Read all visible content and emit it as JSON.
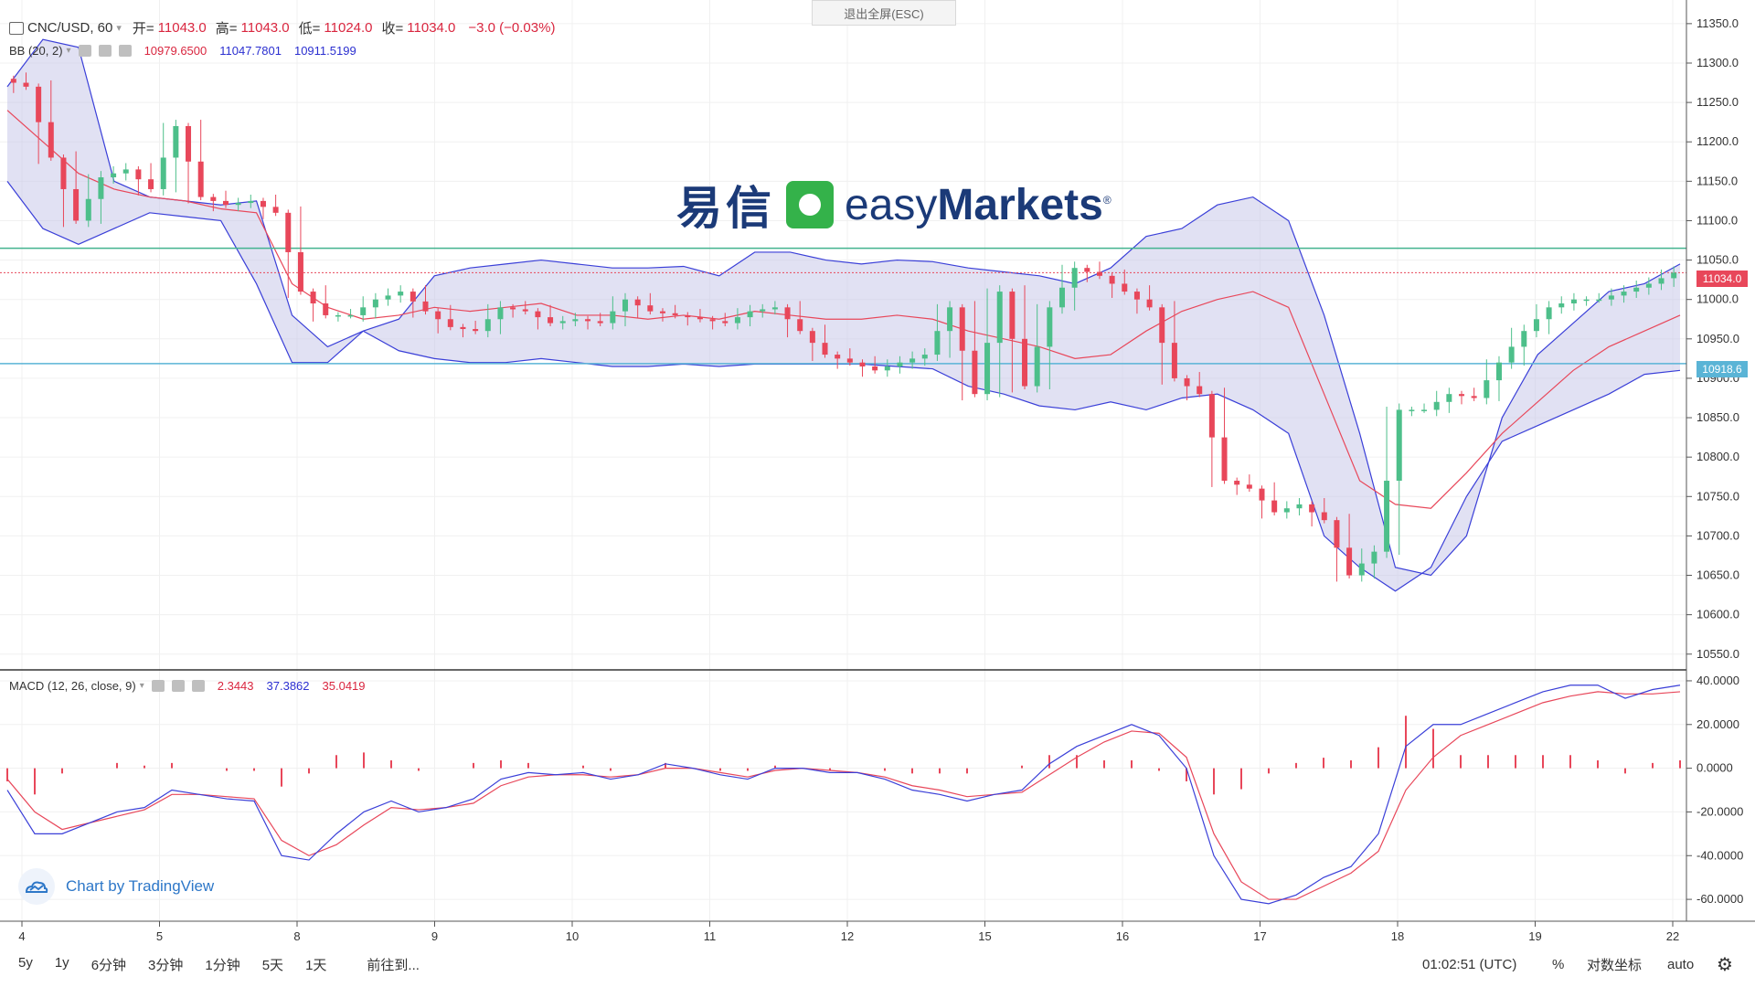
{
  "header": {
    "symbol": "CNC/USD, 60",
    "open_label": "开=",
    "open_value": "11043.0",
    "high_label": "高=",
    "high_value": "11043.0",
    "low_label": "低=",
    "low_value": "11024.0",
    "close_label": "收=",
    "close_value": "11034.0",
    "change": "−3.0 (−0.03%)",
    "exit_fullscreen": "退出全屏(ESC)"
  },
  "bb_legend": {
    "name": "BB (20, 2)",
    "basis": "10979.6500",
    "upper": "11047.7801",
    "lower": "10911.5199"
  },
  "macd_legend": {
    "name": "MACD (12, 26, close, 9)",
    "histogram": "2.3443",
    "macd": "37.3862",
    "signal": "35.0419"
  },
  "watermark": {
    "cn": "易信",
    "en_light": "easy",
    "en_bold": "Markets",
    "reg": "®"
  },
  "tradingview_badge": "Chart by TradingView",
  "price_tags": {
    "current": "11034.0",
    "line": "10918.6"
  },
  "price_axis": [
    "11350.0",
    "11300.0",
    "11250.0",
    "11200.0",
    "11150.0",
    "11100.0",
    "11050.0",
    "11000.0",
    "10950.0",
    "10900.0",
    "10850.0",
    "10800.0",
    "10750.0",
    "10700.0",
    "10650.0",
    "10600.0",
    "10550.0"
  ],
  "macd_axis": [
    "40.0000",
    "20.0000",
    "0.0000",
    "-20.0000",
    "-40.0000",
    "-60.0000"
  ],
  "time_axis": [
    "4",
    "5",
    "8",
    "9",
    "10",
    "11",
    "12",
    "15",
    "16",
    "17",
    "18",
    "19",
    "22"
  ],
  "toolbar": {
    "ranges": [
      "5y",
      "1y",
      "6分钟",
      "3分钟",
      "1分钟",
      "5天",
      "1天"
    ],
    "goto": "前往到...",
    "clock": "01:02:51 (UTC)",
    "percent": "%",
    "log": "对数坐标",
    "auto": "auto"
  },
  "colors": {
    "up": "#26a69a",
    "up_fill": "#4dbf8a",
    "down": "#e8475a",
    "bb_band": "#3a3fd8",
    "bb_basis": "#e8475a",
    "bb_fill": "#c9c8ea",
    "hline_green": "#42b38f",
    "hline_blue": "#5ab4d6",
    "macd_line": "#3a3fd8",
    "signal_line": "#e8475a",
    "hist": "#e8475a"
  },
  "chart_data": {
    "type": "candlestick",
    "ylim": [
      10530,
      11380
    ],
    "macd_ylim": [
      -70,
      45
    ],
    "hlines": [
      11065,
      10918.6,
      11034
    ],
    "bb_upper": [
      11270,
      11330,
      11320,
      11150,
      11130,
      11125,
      11120,
      11125,
      10980,
      10940,
      10960,
      10975,
      11030,
      11040,
      11045,
      11050,
      11045,
      11040,
      11040,
      11042,
      11030,
      11060,
      11060,
      11050,
      11045,
      11050,
      11048,
      11040,
      11035,
      11030,
      11020,
      11040,
      11080,
      11090,
      11120,
      11130,
      11100,
      10980,
      10830,
      10660,
      10650,
      10700,
      10850,
      10930,
      10970,
      11010,
      11020,
      11045
    ],
    "bb_basis": [
      11240,
      11200,
      11160,
      11140,
      11130,
      11125,
      11115,
      11110,
      11020,
      10990,
      10975,
      10980,
      10990,
      10985,
      10990,
      10995,
      10980,
      10980,
      10975,
      10980,
      10975,
      10985,
      10980,
      10975,
      10975,
      10980,
      10975,
      10960,
      10950,
      10940,
      10925,
      10930,
      10960,
      10985,
      11000,
      11010,
      10990,
      10880,
      10770,
      10740,
      10735,
      10780,
      10830,
      10870,
      10910,
      10940,
      10960,
      10980
    ],
    "bb_lower": [
      11150,
      11090,
      11070,
      11090,
      11110,
      11105,
      11100,
      11020,
      10920,
      10920,
      10960,
      10935,
      10925,
      10920,
      10920,
      10925,
      10920,
      10915,
      10915,
      10918,
      10915,
      10918,
      10918,
      10918,
      10918,
      10915,
      10912,
      10890,
      10880,
      10865,
      10860,
      10870,
      10860,
      10875,
      10880,
      10860,
      10830,
      10700,
      10660,
      10630,
      10660,
      10750,
      10820,
      10840,
      10860,
      10880,
      10905,
      10910
    ],
    "closes": [
      11270,
      11180,
      11100,
      11155,
      11165,
      11140,
      11220,
      11130,
      11120,
      11125,
      11110,
      11010,
      10980,
      10980,
      11000,
      11010,
      10985,
      10965,
      10960,
      10990,
      10985,
      10970,
      10975,
      10970,
      11000,
      10985,
      10980,
      10975,
      10970,
      10985,
      10990,
      10960,
      10930,
      10920,
      10910,
      10920,
      10930,
      10990,
      10880,
      11010,
      10890,
      10990,
      11040,
      11030,
      11010,
      10990,
      10900,
      10880,
      10770,
      10760,
      10730,
      10740,
      10720,
      10650,
      10680,
      10860,
      10860,
      10880,
      10875,
      10920,
      10960,
      10990,
      11000,
      11000,
      11010,
      11020,
      11034
    ],
    "time_ticks": [
      "4",
      "5",
      "8",
      "9",
      "10",
      "11",
      "12",
      "15",
      "16",
      "17",
      "18",
      "19",
      "22"
    ],
    "macd": [
      -10,
      -30,
      -30,
      -25,
      -20,
      -18,
      -10,
      -12,
      -14,
      -15,
      -40,
      -42,
      -30,
      -20,
      -15,
      -20,
      -18,
      -14,
      -5,
      -2,
      -3,
      -2,
      -5,
      -3,
      2,
      0,
      -3,
      -5,
      0,
      0,
      -2,
      -2,
      -5,
      -10,
      -12,
      -15,
      -12,
      -10,
      2,
      10,
      15,
      20,
      15,
      0,
      -40,
      -60,
      -62,
      -58,
      -50,
      -45,
      -30,
      10,
      20,
      20,
      25,
      30,
      35,
      38,
      38,
      32,
      36,
      38
    ],
    "signal": [
      -5,
      -20,
      -28,
      -25,
      -22,
      -19,
      -12,
      -12,
      -13,
      -14,
      -33,
      -40,
      -35,
      -26,
      -18,
      -19,
      -18,
      -16,
      -8,
      -4,
      -3,
      -3,
      -4,
      -3,
      0,
      0,
      -2,
      -4,
      -1,
      0,
      -1,
      -2,
      -4,
      -8,
      -10,
      -13,
      -12,
      -11,
      -3,
      5,
      12,
      17,
      16,
      5,
      -30,
      -52,
      -60,
      -60,
      -54,
      -48,
      -38,
      -10,
      5,
      15,
      20,
      25,
      30,
      33,
      35,
      34,
      34,
      35
    ]
  }
}
